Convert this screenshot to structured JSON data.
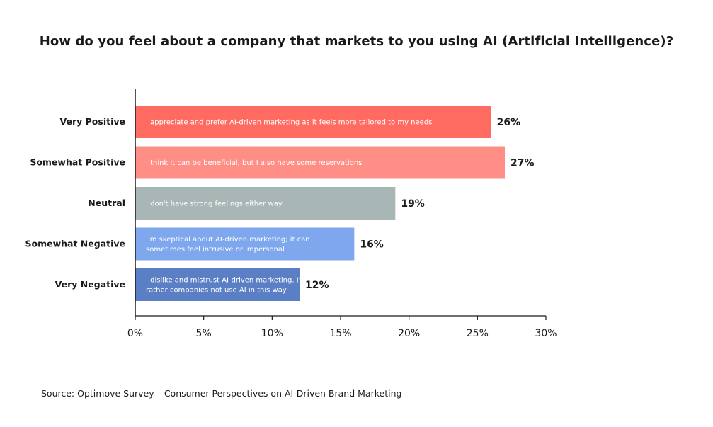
{
  "chart_data": {
    "type": "bar",
    "orientation": "horizontal",
    "title": "How do you feel about a company that markets to you using AI (Artificial Intelligence)?",
    "categories": [
      "Very Positive",
      "Somewhat Positive",
      "Neutral",
      "Somewhat Negative",
      "Very Negative"
    ],
    "values": [
      26,
      27,
      19,
      16,
      12
    ],
    "value_labels": [
      "26%",
      "27%",
      "19%",
      "16%",
      "12%"
    ],
    "bar_annotations": [
      [
        "I appreciate and prefer AI-driven marketing as it feels more tailored to my needs"
      ],
      [
        "I think it can be beneficial, but I also have some reservations"
      ],
      [
        "I don't have strong feelings either way"
      ],
      [
        "I'm skeptical about AI-driven marketing; it can",
        "sometimes feel intrusive or impersonal"
      ],
      [
        "I dislike and mistrust AI-driven marketing. I'd",
        "rather companies not use AI in this way"
      ]
    ],
    "colors": [
      "#ff6b61",
      "#ff8f86",
      "#a9b6b6",
      "#7fa7ee",
      "#5b7fc4"
    ],
    "xlim": [
      0,
      30
    ],
    "xticks": [
      0,
      5,
      10,
      15,
      20,
      25,
      30
    ],
    "xtick_labels": [
      "0%",
      "5%",
      "10%",
      "15%",
      "20%",
      "25%",
      "30%"
    ],
    "xlabel": "",
    "ylabel": "",
    "grid": false,
    "legend": "none"
  },
  "source": "Source: Optimove Survey – Consumer Perspectives on AI-Driven Brand Marketing"
}
